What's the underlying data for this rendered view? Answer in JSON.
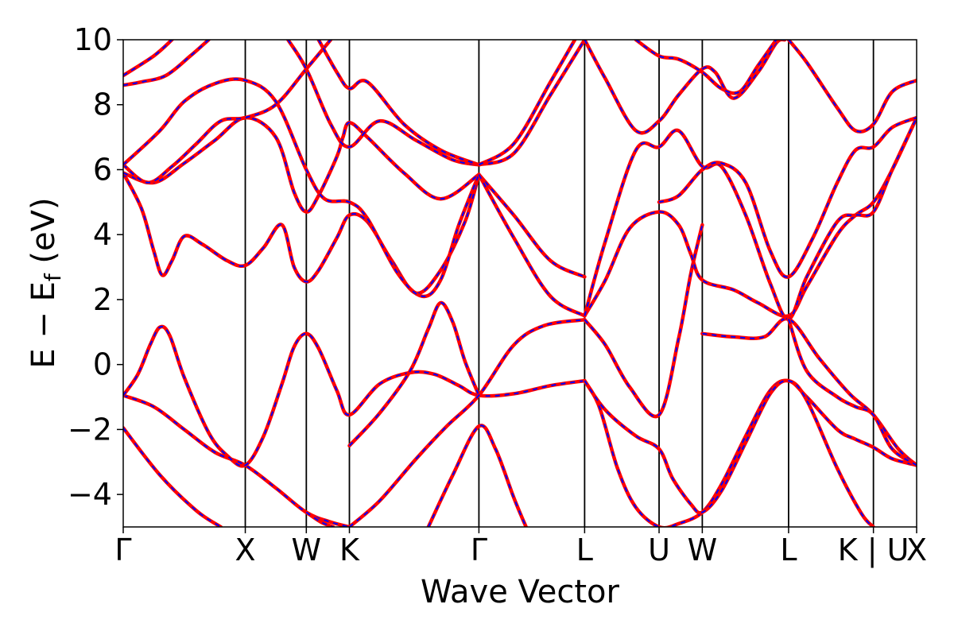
{
  "chart_data": {
    "type": "line",
    "title": "",
    "xlabel": "Wave Vector",
    "ylabel_parts": {
      "main": "E − E",
      "sub": "f",
      "unit": " (eV)"
    },
    "ylim": [
      -5,
      10
    ],
    "yticks": [
      -4,
      -2,
      0,
      2,
      4,
      6,
      8,
      10
    ],
    "ytick_labels": [
      "−4",
      "−2",
      "0",
      "2",
      "4",
      "6",
      "8",
      "10"
    ],
    "xlim": [
      0,
      6.5
    ],
    "kpath": [
      {
        "label": "Γ",
        "x": 0.0
      },
      {
        "label": "X",
        "x": 1.0
      },
      {
        "label": "W",
        "x": 1.5
      },
      {
        "label": "K",
        "x": 1.853
      },
      {
        "label": "Γ",
        "x": 2.914
      },
      {
        "label": "L",
        "x": 3.78
      },
      {
        "label": "U",
        "x": 4.39
      },
      {
        "label": "W",
        "x": 4.744
      },
      {
        "label": "L",
        "x": 5.451
      },
      {
        "label": "K | U",
        "x": 6.146
      },
      {
        "label": "X",
        "x": 6.5
      }
    ],
    "grid": false,
    "legend": "none",
    "series_style": [
      {
        "color": "#ff0000",
        "style": "solid"
      },
      {
        "color": "#0000ff",
        "style": "dashed"
      }
    ],
    "bands": [
      {
        "points": [
          [
            0,
            -1.95
          ],
          [
            0.3,
            -3.4
          ],
          [
            0.6,
            -4.5
          ],
          [
            0.8,
            -5.0
          ]
        ]
      },
      {
        "points": [
          [
            0,
            -0.95
          ],
          [
            0.25,
            -1.3
          ],
          [
            0.5,
            -2.0
          ],
          [
            0.75,
            -2.7
          ],
          [
            1.0,
            -3.1
          ],
          [
            1.25,
            -3.8
          ],
          [
            1.5,
            -4.55
          ],
          [
            1.7,
            -4.85
          ],
          [
            1.853,
            -5.0
          ]
        ]
      },
      {
        "points": [
          [
            0,
            -0.95
          ],
          [
            0.12,
            -0.3
          ],
          [
            0.22,
            0.6
          ],
          [
            0.3,
            1.15
          ],
          [
            0.38,
            0.9
          ],
          [
            0.5,
            -0.4
          ],
          [
            0.7,
            -2.1
          ],
          [
            0.85,
            -2.8
          ],
          [
            1.0,
            -3.1
          ],
          [
            1.15,
            -2.2
          ],
          [
            1.3,
            -0.6
          ],
          [
            1.4,
            0.55
          ],
          [
            1.5,
            0.95
          ],
          [
            1.6,
            0.5
          ],
          [
            1.75,
            -0.8
          ],
          [
            1.853,
            -1.55
          ],
          [
            2.1,
            -0.6
          ],
          [
            2.35,
            -0.25
          ],
          [
            2.55,
            -0.3
          ],
          [
            2.75,
            -0.65
          ],
          [
            2.914,
            -0.95
          ],
          [
            3.2,
            -0.9
          ],
          [
            3.5,
            -0.65
          ],
          [
            3.78,
            -0.5
          ]
        ]
      },
      {
        "points": [
          [
            1.5,
            -4.55
          ],
          [
            1.62,
            -4.85
          ],
          [
            1.72,
            -5.0
          ]
        ]
      },
      {
        "points": [
          [
            1.853,
            -2.5
          ],
          [
            2.1,
            -1.5
          ],
          [
            2.35,
            -0.2
          ],
          [
            2.5,
            1.1
          ],
          [
            2.6,
            1.9
          ],
          [
            2.7,
            1.3
          ],
          [
            2.8,
            0.1
          ],
          [
            2.914,
            -0.95
          ]
        ]
      },
      {
        "points": [
          [
            1.853,
            -5.0
          ],
          [
            2.1,
            -4.2
          ],
          [
            2.4,
            -2.9
          ],
          [
            2.65,
            -1.9
          ],
          [
            2.914,
            -0.95
          ],
          [
            3.2,
            0.6
          ],
          [
            3.45,
            1.2
          ],
          [
            3.78,
            1.38
          ]
        ]
      },
      {
        "points": [
          [
            2.5,
            -5.0
          ],
          [
            2.7,
            -3.4
          ],
          [
            2.914,
            -1.9
          ],
          [
            3.05,
            -2.6
          ],
          [
            3.2,
            -4.1
          ],
          [
            3.3,
            -5.0
          ]
        ]
      },
      {
        "points": [
          [
            3.78,
            -0.5
          ],
          [
            3.9,
            -1.3
          ],
          [
            4.05,
            -3.2
          ],
          [
            4.2,
            -4.4
          ],
          [
            4.39,
            -5.0
          ],
          [
            4.55,
            -4.9
          ],
          [
            4.744,
            -4.55
          ],
          [
            4.9,
            -3.7
          ],
          [
            5.1,
            -2.2
          ],
          [
            5.3,
            -0.8
          ],
          [
            5.451,
            -0.5
          ],
          [
            5.6,
            -1.0
          ],
          [
            5.85,
            -2.0
          ],
          [
            6.0,
            -2.3
          ],
          [
            6.146,
            -2.55
          ],
          [
            6.3,
            -2.9
          ],
          [
            6.5,
            -3.1
          ]
        ]
      },
      {
        "points": [
          [
            3.78,
            -0.5
          ],
          [
            3.95,
            -1.4
          ],
          [
            4.2,
            -2.2
          ],
          [
            4.39,
            -2.6
          ],
          [
            4.5,
            -3.5
          ],
          [
            4.65,
            -4.3
          ],
          [
            4.744,
            -4.55
          ],
          [
            4.9,
            -3.9
          ],
          [
            5.1,
            -2.4
          ],
          [
            5.3,
            -0.9
          ],
          [
            5.451,
            -0.5
          ],
          [
            5.6,
            -1.1
          ],
          [
            5.85,
            -3.2
          ],
          [
            6.05,
            -4.6
          ],
          [
            6.146,
            -5.0
          ]
        ]
      },
      {
        "points": [
          [
            3.78,
            1.38
          ],
          [
            3.95,
            0.6
          ],
          [
            4.15,
            -0.7
          ],
          [
            4.39,
            -1.55
          ],
          [
            4.55,
            0.8
          ],
          [
            4.65,
            2.8
          ],
          [
            4.744,
            4.3
          ]
        ]
      },
      {
        "points": [
          [
            4.744,
            0.95
          ],
          [
            5.0,
            0.85
          ],
          [
            5.25,
            0.85
          ],
          [
            5.451,
            1.4
          ],
          [
            5.7,
            0.2
          ],
          [
            5.95,
            -0.9
          ],
          [
            6.146,
            -1.55
          ],
          [
            6.35,
            -2.6
          ],
          [
            6.5,
            -3.1
          ]
        ]
      },
      {
        "points": [
          [
            0,
            5.9
          ],
          [
            0.15,
            4.8
          ],
          [
            0.25,
            3.5
          ],
          [
            0.32,
            2.75
          ],
          [
            0.4,
            3.2
          ],
          [
            0.5,
            3.95
          ],
          [
            0.65,
            3.7
          ],
          [
            0.85,
            3.2
          ],
          [
            1.0,
            3.05
          ],
          [
            1.15,
            3.6
          ],
          [
            1.3,
            4.3
          ],
          [
            1.4,
            3.0
          ],
          [
            1.5,
            2.55
          ],
          [
            1.6,
            2.9
          ],
          [
            1.75,
            3.9
          ],
          [
            1.853,
            4.6
          ],
          [
            2.0,
            4.4
          ],
          [
            2.2,
            3.2
          ],
          [
            2.4,
            2.2
          ],
          [
            2.6,
            2.9
          ],
          [
            2.8,
            4.4
          ],
          [
            2.914,
            5.85
          ]
        ]
      },
      {
        "points": [
          [
            0,
            5.9
          ],
          [
            0.25,
            5.6
          ],
          [
            0.5,
            6.2
          ],
          [
            0.75,
            6.9
          ],
          [
            1.0,
            7.6
          ],
          [
            1.25,
            7.0
          ],
          [
            1.4,
            5.3
          ],
          [
            1.5,
            4.7
          ],
          [
            1.6,
            5.2
          ],
          [
            1.75,
            6.4
          ],
          [
            1.8,
            7.0
          ],
          [
            1.853,
            7.45
          ],
          [
            2.0,
            7.0
          ],
          [
            2.3,
            5.9
          ],
          [
            2.6,
            5.1
          ],
          [
            2.914,
            5.85
          ]
        ]
      },
      {
        "points": [
          [
            0,
            6.15
          ],
          [
            0.2,
            5.6
          ],
          [
            0.4,
            6.1
          ],
          [
            0.6,
            6.8
          ],
          [
            0.8,
            7.5
          ],
          [
            1.0,
            7.6
          ],
          [
            1.25,
            8.0
          ],
          [
            1.5,
            9.1
          ],
          [
            1.7,
            10.0
          ]
        ]
      },
      {
        "points": [
          [
            0,
            6.15
          ],
          [
            0.3,
            7.2
          ],
          [
            0.5,
            8.1
          ],
          [
            0.75,
            8.65
          ],
          [
            1.0,
            8.75
          ],
          [
            1.25,
            8.1
          ],
          [
            1.5,
            6.0
          ],
          [
            1.65,
            5.1
          ],
          [
            1.853,
            5.0
          ],
          [
            2.0,
            4.5
          ],
          [
            2.25,
            2.8
          ],
          [
            2.45,
            2.1
          ],
          [
            2.6,
            2.6
          ],
          [
            2.75,
            4.3
          ],
          [
            2.914,
            5.85
          ]
        ]
      },
      {
        "points": [
          [
            0,
            8.6
          ],
          [
            0.15,
            8.7
          ],
          [
            0.35,
            8.9
          ],
          [
            0.55,
            9.5
          ],
          [
            0.7,
            10.0
          ]
        ]
      },
      {
        "points": [
          [
            0,
            8.9
          ],
          [
            0.25,
            9.5
          ],
          [
            0.4,
            10.0
          ]
        ]
      },
      {
        "points": [
          [
            1.35,
            10.0
          ],
          [
            1.5,
            9.1
          ],
          [
            1.7,
            7.4
          ],
          [
            1.853,
            6.7
          ],
          [
            2.1,
            7.5
          ],
          [
            2.4,
            6.9
          ],
          [
            2.7,
            6.3
          ],
          [
            2.914,
            6.15
          ]
        ]
      },
      {
        "points": [
          [
            1.6,
            10.0
          ],
          [
            1.75,
            9.0
          ],
          [
            1.853,
            8.5
          ],
          [
            2.0,
            8.7
          ],
          [
            2.3,
            7.4
          ],
          [
            2.6,
            6.6
          ],
          [
            2.914,
            6.15
          ]
        ]
      },
      {
        "points": [
          [
            2.914,
            6.15
          ],
          [
            3.2,
            6.5
          ],
          [
            3.5,
            8.3
          ],
          [
            3.78,
            10.0
          ]
        ]
      },
      {
        "points": [
          [
            2.914,
            6.15
          ],
          [
            3.2,
            6.8
          ],
          [
            3.5,
            8.7
          ],
          [
            3.7,
            10.0
          ]
        ]
      },
      {
        "points": [
          [
            2.914,
            5.85
          ],
          [
            3.2,
            4.6
          ],
          [
            3.5,
            3.2
          ],
          [
            3.78,
            2.7
          ]
        ]
      },
      {
        "points": [
          [
            2.914,
            5.85
          ],
          [
            3.2,
            3.9
          ],
          [
            3.5,
            2.1
          ],
          [
            3.78,
            1.5
          ]
        ]
      },
      {
        "points": [
          [
            3.78,
            1.5
          ],
          [
            3.95,
            2.6
          ],
          [
            4.15,
            4.2
          ],
          [
            4.39,
            4.7
          ],
          [
            4.55,
            4.3
          ],
          [
            4.65,
            3.4
          ],
          [
            4.744,
            2.6
          ],
          [
            5.0,
            2.3
          ],
          [
            5.2,
            1.9
          ],
          [
            5.451,
            1.5
          ],
          [
            5.6,
            2.4
          ],
          [
            5.85,
            4.0
          ],
          [
            6.0,
            4.6
          ],
          [
            6.146,
            5.0
          ],
          [
            6.3,
            6.0
          ],
          [
            6.5,
            7.6
          ]
        ]
      },
      {
        "points": [
          [
            3.78,
            1.5
          ],
          [
            3.95,
            3.8
          ],
          [
            4.2,
            6.6
          ],
          [
            4.39,
            6.7
          ],
          [
            4.55,
            7.2
          ],
          [
            4.744,
            6.1
          ],
          [
            4.9,
            6.1
          ],
          [
            5.1,
            4.6
          ],
          [
            5.3,
            2.5
          ],
          [
            5.451,
            1.4
          ],
          [
            5.6,
            2.7
          ],
          [
            5.85,
            4.4
          ],
          [
            6.0,
            4.6
          ],
          [
            6.146,
            4.7
          ],
          [
            6.3,
            6.0
          ],
          [
            6.5,
            7.6
          ]
        ]
      },
      {
        "points": [
          [
            3.78,
            10.0
          ],
          [
            3.95,
            8.8
          ],
          [
            4.2,
            7.2
          ],
          [
            4.39,
            7.5
          ],
          [
            4.55,
            8.3
          ],
          [
            4.744,
            9.1
          ],
          [
            4.85,
            9.0
          ],
          [
            5.0,
            8.2
          ],
          [
            5.2,
            9.0
          ],
          [
            5.35,
            9.9
          ],
          [
            5.42,
            10.0
          ]
        ]
      },
      {
        "points": [
          [
            4.39,
            5.0
          ],
          [
            4.55,
            5.2
          ],
          [
            4.744,
            6.0
          ],
          [
            4.9,
            6.2
          ],
          [
            5.1,
            5.6
          ],
          [
            5.3,
            3.5
          ],
          [
            5.451,
            2.7
          ],
          [
            5.65,
            3.9
          ],
          [
            5.85,
            5.6
          ],
          [
            6.0,
            6.6
          ],
          [
            6.146,
            6.7
          ],
          [
            6.3,
            7.3
          ],
          [
            6.5,
            7.6
          ]
        ]
      },
      {
        "points": [
          [
            4.2,
            10.0
          ],
          [
            4.39,
            9.5
          ],
          [
            4.55,
            9.4
          ],
          [
            4.744,
            9.0
          ],
          [
            4.9,
            8.5
          ],
          [
            5.05,
            8.4
          ],
          [
            5.2,
            9.2
          ],
          [
            5.35,
            10.0
          ]
        ]
      },
      {
        "points": [
          [
            5.451,
            10.0
          ],
          [
            5.6,
            9.3
          ],
          [
            5.85,
            7.9
          ],
          [
            6.0,
            7.2
          ],
          [
            6.146,
            7.4
          ],
          [
            6.3,
            8.4
          ],
          [
            6.5,
            8.75
          ]
        ]
      },
      {
        "points": [
          [
            5.451,
            1.4
          ],
          [
            5.6,
            -0.2
          ],
          [
            5.85,
            -1.0
          ],
          [
            6.0,
            -1.3
          ],
          [
            6.146,
            -1.55
          ],
          [
            6.3,
            -2.6
          ],
          [
            6.5,
            -3.1
          ]
        ]
      }
    ]
  }
}
